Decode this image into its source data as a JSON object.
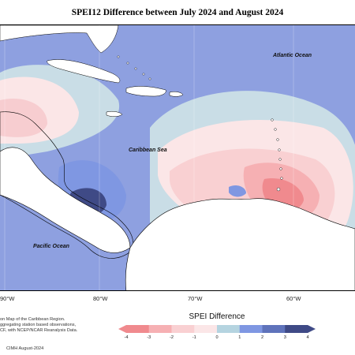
{
  "title": "SPEI12 Difference between July 2024 and August 2024",
  "labels": {
    "atlantic": "Atlantic Ocean",
    "caribbean": "Caribbean Sea",
    "pacific": "Pacific Ocean"
  },
  "longitudes": [
    "90°W",
    "80°W",
    "70°W",
    "60°W"
  ],
  "description": {
    "line1": "on Map of the Caribbean Region.",
    "line2": "ggregating station based observations,",
    "line3": "CF, with NCEP/NCAR Reanalysis Data."
  },
  "credit": "CIMH August-2024",
  "legend": {
    "title": "SPEI Difference",
    "ticks": [
      "-4",
      "-3",
      "-2",
      "-1",
      "0",
      "1",
      "2",
      "3",
      "4"
    ],
    "colors": [
      "#f08a8e",
      "#f6b0b3",
      "#f9d0d2",
      "#fbe6e7",
      "#d8e6ec",
      "#b5d4e0",
      "#7f97e2",
      "#5f73bb",
      "#3f4a86"
    ]
  }
}
